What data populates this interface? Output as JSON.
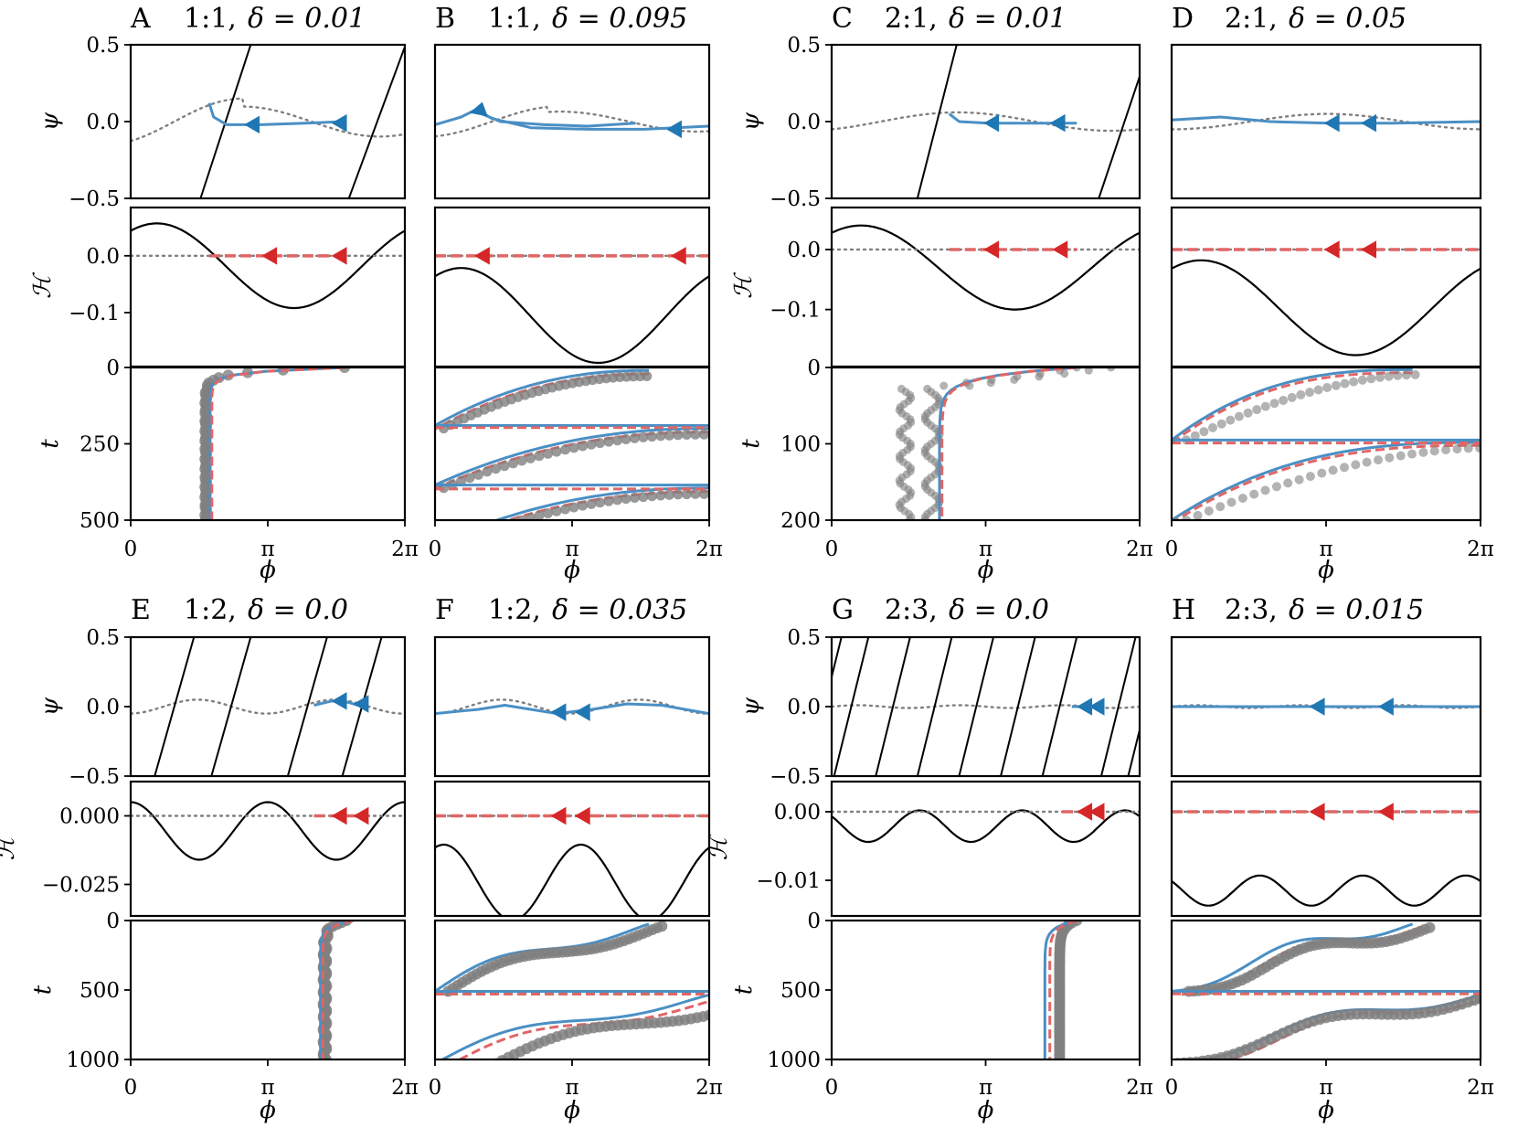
{
  "colors": {
    "blue": "#4a8fc4",
    "blue_dark": "#1f77b4",
    "red": "#d62728",
    "red_light": "#e06666",
    "gray": "#808080",
    "black": "#000000"
  },
  "chart_data": [
    {
      "type": "line",
      "panel": "A",
      "title": {
        "letter": "A",
        "ratio": "1:1,",
        "delta": "δ = 0.01"
      },
      "xlabel": "ϕ",
      "xticks": [
        "0",
        "π",
        "2π"
      ],
      "psi": {
        "ylabel": "ψ",
        "ylim": [
          -0.5,
          0.5
        ],
        "yticks": [
          "0.5",
          "0.0",
          "−0.5"
        ]
      },
      "h": {
        "ylabel": "ℋ",
        "ylim": [
          -0.195,
          0.085
        ],
        "yticks": [
          "0.0",
          "−0.1"
        ],
        "ytick_values": [
          0.0,
          -0.1
        ]
      },
      "t": {
        "ylabel": "t",
        "ylim": [
          0,
          500
        ],
        "yticks": [
          "0",
          "250",
          "500"
        ],
        "ytick_values": [
          0,
          250,
          500
        ]
      }
    },
    {
      "type": "line",
      "panel": "B",
      "title": {
        "letter": "B",
        "ratio": "1:1,",
        "delta": "δ = 0.095"
      },
      "xlabel": "ϕ",
      "xticks": [
        "0",
        "π",
        "2π"
      ],
      "psi": {
        "ylim": [
          -0.5,
          0.5
        ]
      },
      "h": {
        "ylim": [
          -0.195,
          0.085
        ]
      },
      "t": {
        "ylim": [
          0,
          500
        ]
      }
    },
    {
      "type": "line",
      "panel": "C",
      "title": {
        "letter": "C",
        "ratio": "2:1,",
        "delta": "δ = 0.01"
      },
      "xlabel": "ϕ",
      "xticks": [
        "0",
        "π",
        "2π"
      ],
      "psi": {
        "ylabel": "ψ",
        "ylim": [
          -0.5,
          0.5
        ],
        "yticks": [
          "0.5",
          "0.0",
          "−0.5"
        ]
      },
      "h": {
        "ylabel": "ℋ",
        "ylim": [
          -0.195,
          0.07
        ],
        "yticks": [
          "0.0",
          "−0.1"
        ],
        "ytick_values": [
          0.0,
          -0.1
        ]
      },
      "t": {
        "ylabel": "t",
        "ylim": [
          0,
          200
        ],
        "yticks": [
          "0",
          "100",
          "200"
        ],
        "ytick_values": [
          0,
          100,
          200
        ]
      }
    },
    {
      "type": "line",
      "panel": "D",
      "title": {
        "letter": "D",
        "ratio": "2:1,",
        "delta": "δ = 0.05"
      },
      "xlabel": "ϕ",
      "xticks": [
        "0",
        "π",
        "2π"
      ],
      "psi": {
        "ylim": [
          -0.5,
          0.5
        ]
      },
      "h": {
        "ylim": [
          -0.195,
          0.07
        ]
      },
      "t": {
        "ylim": [
          0,
          200
        ]
      }
    },
    {
      "type": "line",
      "panel": "E",
      "title": {
        "letter": "E",
        "ratio": "1:2,",
        "delta": "δ = 0.0"
      },
      "xlabel": "ϕ",
      "xticks": [
        "0",
        "π",
        "2π"
      ],
      "psi": {
        "ylabel": "ψ",
        "ylim": [
          -0.5,
          0.5
        ],
        "yticks": [
          "0.5",
          "0.0",
          "−0.5"
        ]
      },
      "h": {
        "ylabel": "ℋ",
        "ylim": [
          -0.0365,
          0.0125
        ],
        "yticks": [
          "0.000",
          "−0.025"
        ],
        "ytick_values": [
          0.0,
          -0.025
        ]
      },
      "t": {
        "ylabel": "t",
        "ylim": [
          0,
          1000
        ],
        "yticks": [
          "0",
          "500",
          "1000"
        ],
        "ytick_values": [
          0,
          500,
          1000
        ]
      }
    },
    {
      "type": "line",
      "panel": "F",
      "title": {
        "letter": "F",
        "ratio": "1:2,",
        "delta": "δ = 0.035"
      },
      "xlabel": "ϕ",
      "xticks": [
        "0",
        "π",
        "2π"
      ],
      "psi": {
        "ylim": [
          -0.5,
          0.5
        ]
      },
      "h": {
        "ylim": [
          -0.0365,
          0.0125
        ]
      },
      "t": {
        "ylim": [
          0,
          1000
        ]
      }
    },
    {
      "type": "line",
      "panel": "G",
      "title": {
        "letter": "G",
        "ratio": "2:3,",
        "delta": "δ = 0.0"
      },
      "xlabel": "ϕ",
      "xticks": [
        "0",
        "π",
        "2π"
      ],
      "psi": {
        "ylabel": "ψ",
        "ylim": [
          -0.5,
          0.5
        ],
        "yticks": [
          "0.5",
          "0.0",
          "−0.5"
        ]
      },
      "h": {
        "ylabel": "ℋ",
        "ylim": [
          -0.0152,
          0.0044
        ],
        "yticks": [
          "0.00",
          "−0.01"
        ],
        "ytick_values": [
          0.0,
          -0.01
        ]
      },
      "t": {
        "ylabel": "t",
        "ylim": [
          0,
          1000
        ],
        "yticks": [
          "0",
          "500",
          "1000"
        ],
        "ytick_values": [
          0,
          500,
          1000
        ]
      }
    },
    {
      "type": "line",
      "panel": "H",
      "title": {
        "letter": "H",
        "ratio": "2:3,",
        "delta": "δ = 0.015"
      },
      "xlabel": "ϕ",
      "xticks": [
        "0",
        "π",
        "2π"
      ],
      "psi": {
        "ylim": [
          -0.5,
          0.5
        ]
      },
      "h": {
        "ylim": [
          -0.0152,
          0.0044
        ]
      },
      "t": {
        "ylim": [
          0,
          1000
        ]
      }
    }
  ]
}
